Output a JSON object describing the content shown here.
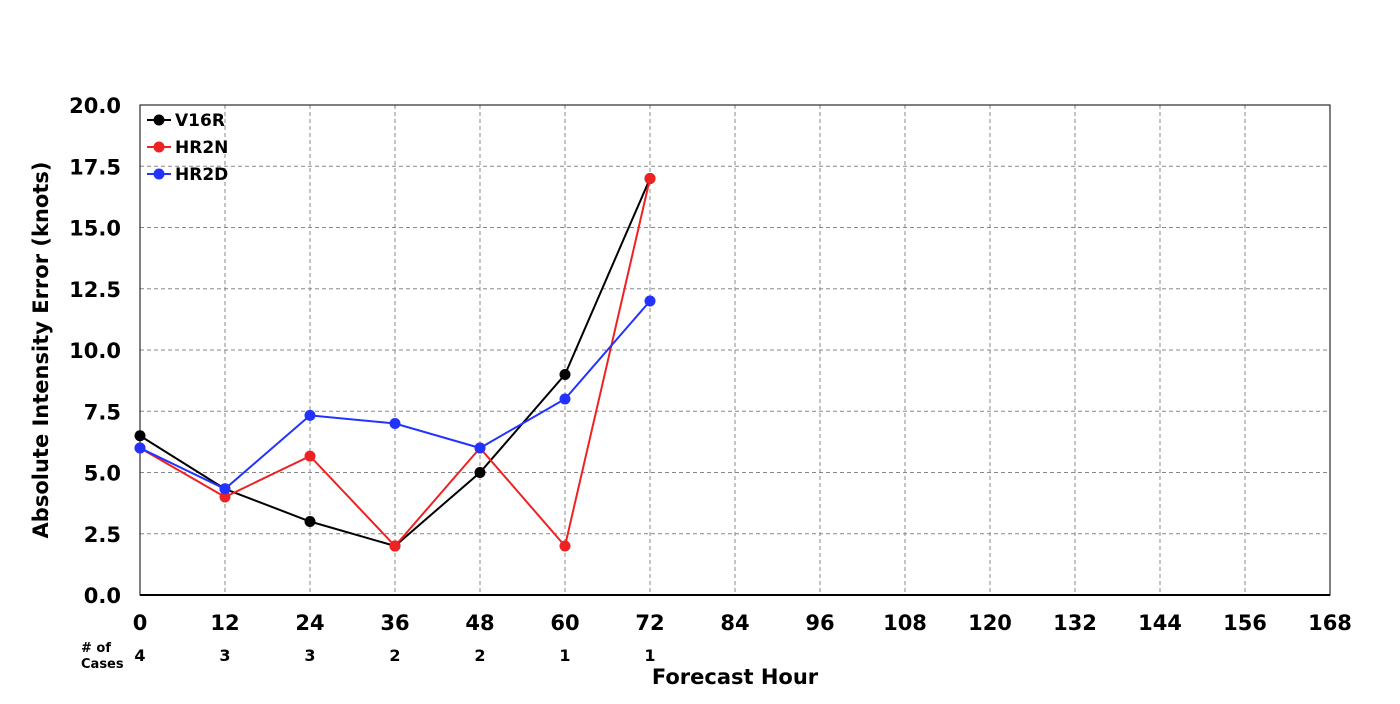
{
  "chart_data": {
    "type": "line",
    "title": "",
    "xlabel": "Forecast Hour",
    "ylabel": "Absolute Intensity Error (knots)",
    "xlim": [
      0,
      168
    ],
    "ylim": [
      0,
      20
    ],
    "x_ticks": [
      "0",
      "12",
      "24",
      "36",
      "48",
      "60",
      "72",
      "84",
      "96",
      "108",
      "120",
      "132",
      "144",
      "156",
      "168"
    ],
    "y_ticks": [
      "0.0",
      "2.5",
      "5.0",
      "7.5",
      "10.0",
      "12.5",
      "15.0",
      "17.5",
      "20.0"
    ],
    "grid": true,
    "legend_position": "top-left",
    "x": [
      0,
      12,
      24,
      36,
      48,
      60,
      72
    ],
    "series": [
      {
        "name": "V16R",
        "color": "#000000",
        "x": [
          0,
          12,
          24,
          36,
          48,
          60,
          72
        ],
        "values": [
          6.5,
          4.33,
          3.0,
          2.0,
          5.0,
          9.0,
          17.0
        ]
      },
      {
        "name": "HR2N",
        "color": "#ee2222",
        "x": [
          0,
          12,
          24,
          36,
          48,
          60,
          72
        ],
        "values": [
          6.0,
          4.0,
          5.67,
          2.0,
          6.0,
          2.0,
          17.0
        ]
      },
      {
        "name": "HR2D",
        "color": "#2233ff",
        "x": [
          0,
          12,
          24,
          36,
          48,
          60,
          72
        ],
        "values": [
          6.0,
          4.33,
          7.33,
          7.0,
          6.0,
          8.0,
          12.0
        ]
      }
    ],
    "cases": {
      "label_line1": "# of",
      "label_line2": "Cases",
      "x": [
        0,
        12,
        24,
        36,
        48,
        60,
        72
      ],
      "values": [
        "4",
        "3",
        "3",
        "2",
        "2",
        "1",
        "1"
      ]
    }
  }
}
